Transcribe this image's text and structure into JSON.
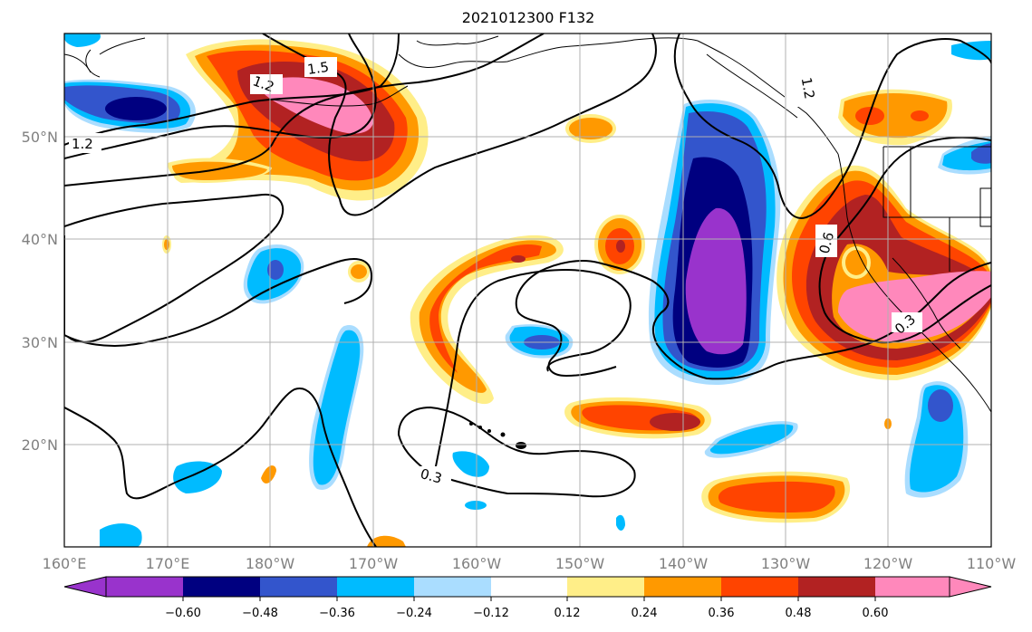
{
  "title": "2021012300 F132",
  "map": {
    "xaxis_ticks": [
      "160°E",
      "170°E",
      "180°W",
      "170°W",
      "160°W",
      "150°W",
      "140°W",
      "130°W",
      "120°W",
      "110°W"
    ],
    "yaxis_ticks": [
      "20°N",
      "30°N",
      "40°N",
      "50°N"
    ],
    "contour_labels": [
      "1.2",
      "1.5",
      "1.2",
      "1.2",
      "0.6",
      "0.3",
      "0.3"
    ],
    "colors": {
      "purple": "#9933cc",
      "navy": "#000080",
      "blue": "#3355cc",
      "sky": "#00bbff",
      "lightblue": "#aaddff",
      "yellow": "#ffee88",
      "orange": "#ff9900",
      "redorange": "#ff4400",
      "darkred": "#b22222",
      "pink": "#ff88bb",
      "grid": "#b0b0b0",
      "tick_text": "#808080"
    }
  },
  "colorbar": {
    "labels": [
      "−0.60",
      "−0.48",
      "−0.36",
      "−0.24",
      "−0.12",
      "0.12",
      "0.24",
      "0.36",
      "0.48",
      "0.60"
    ],
    "colors": [
      "#9933cc",
      "#000080",
      "#3355cc",
      "#00bbff",
      "#aaddff",
      "#ffffff",
      "#ffee88",
      "#ff9900",
      "#ff4400",
      "#b22222",
      "#ff88bb"
    ]
  }
}
